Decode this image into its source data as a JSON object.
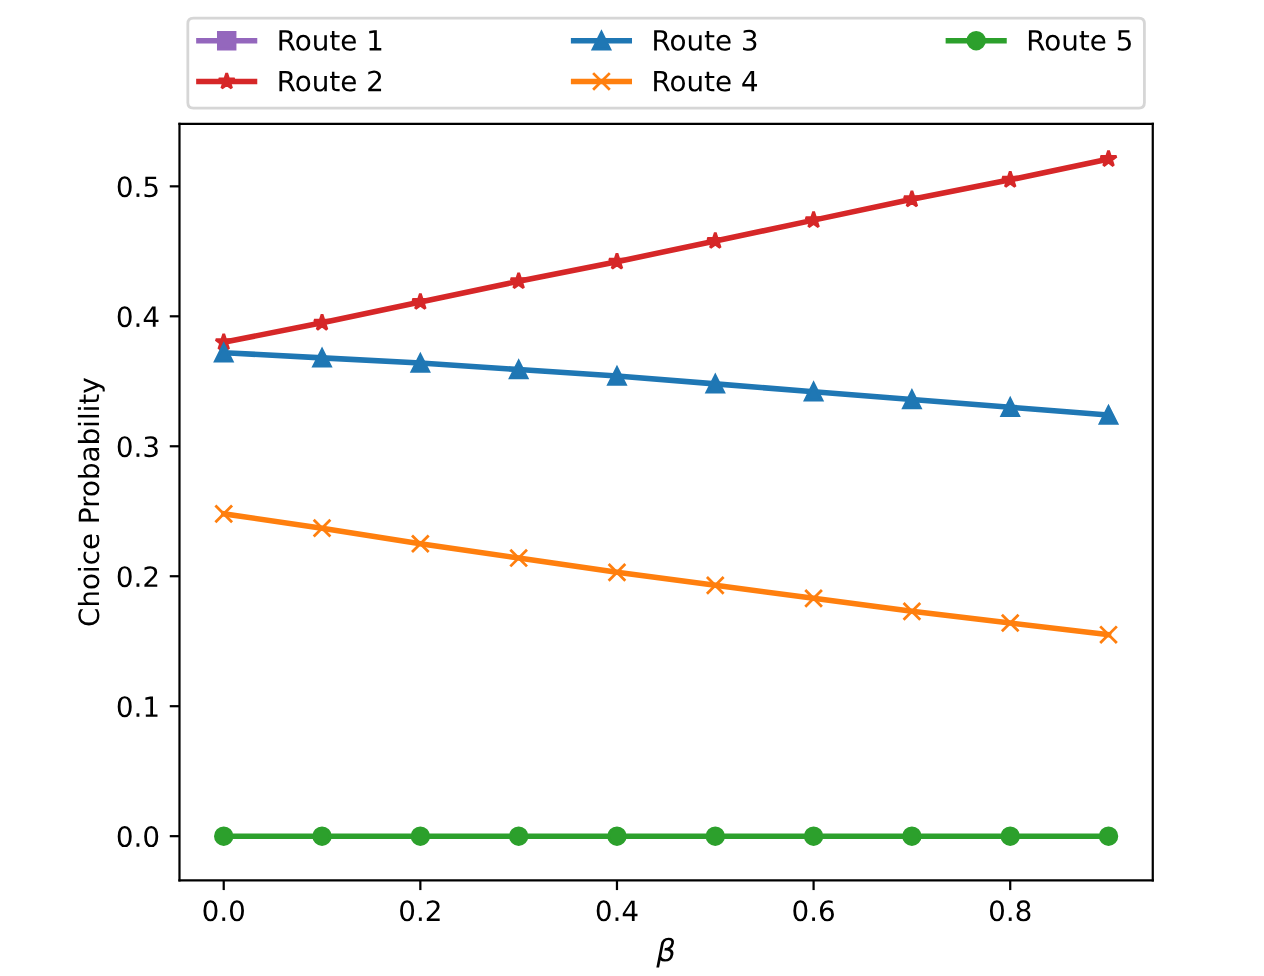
{
  "chart_data": {
    "type": "line",
    "xlabel": "β",
    "ylabel": "Choice Probability",
    "x": [
      0.0,
      0.1,
      0.2,
      0.3,
      0.4,
      0.5,
      0.6,
      0.7,
      0.8,
      0.9
    ],
    "series": [
      {
        "name": "Route 1",
        "color": "#9467bd",
        "marker": "square",
        "values": [
          null,
          null,
          null,
          null,
          null,
          null,
          null,
          null,
          null,
          null
        ]
      },
      {
        "name": "Route 2",
        "color": "#d62728",
        "marker": "star",
        "values": [
          0.38,
          0.395,
          0.411,
          0.427,
          0.442,
          0.458,
          0.474,
          0.49,
          0.505,
          0.521
        ]
      },
      {
        "name": "Route 3",
        "color": "#1f77b4",
        "marker": "triangle",
        "values": [
          0.372,
          0.368,
          0.364,
          0.359,
          0.354,
          0.348,
          0.342,
          0.336,
          0.33,
          0.324
        ]
      },
      {
        "name": "Route 4",
        "color": "#ff7f0e",
        "marker": "cross",
        "values": [
          0.248,
          0.237,
          0.225,
          0.214,
          0.203,
          0.193,
          0.183,
          0.173,
          0.164,
          0.155
        ]
      },
      {
        "name": "Route 5",
        "color": "#2ca02c",
        "marker": "circle",
        "values": [
          0,
          0,
          0,
          0,
          0,
          0,
          0,
          0,
          0,
          0
        ]
      }
    ],
    "xlim": [
      -0.045,
      0.945
    ],
    "ylim": [
      -0.034,
      0.548
    ],
    "xticks": [
      {
        "value": 0.0,
        "label": "0.0"
      },
      0.2,
      0.4,
      0.6,
      0.8
    ],
    "yticks": [
      {
        "value": 0.0,
        "label": "0.0"
      },
      0.1,
      0.2,
      0.3,
      0.4,
      0.5
    ],
    "grid": false,
    "legend": "top",
    "line_style": "solid"
  }
}
